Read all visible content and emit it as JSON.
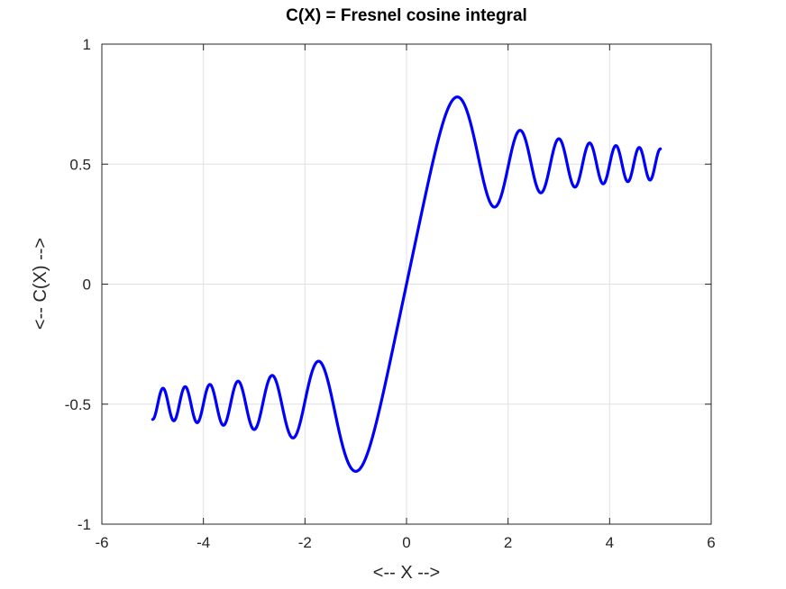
{
  "chart_data": {
    "type": "line",
    "title": "C(X) = Fresnel cosine integral",
    "xlabel": "<-- X -->",
    "ylabel": "<-- C(X) -->",
    "xlim": [
      -6,
      6
    ],
    "ylim": [
      -1,
      1
    ],
    "xticks": [
      -6,
      -4,
      -2,
      0,
      2,
      4,
      6
    ],
    "yticks": [
      -1,
      -0.5,
      0,
      0.5,
      1
    ],
    "xtick_labels": [
      "-6",
      "-4",
      "-2",
      "0",
      "2",
      "4",
      "6"
    ],
    "ytick_labels": [
      "-1",
      "-0.5",
      "0",
      "0.5",
      "1"
    ],
    "grid": true,
    "series": [
      {
        "color": "#0000ff",
        "function": "fresnel_cosine_integral",
        "x_range": [
          -5,
          5
        ],
        "x": [
          -5,
          -4.75,
          -4.5,
          -4.25,
          -4,
          -3.75,
          -3.5,
          -3.25,
          -3,
          -2.75,
          -2.5,
          -2.25,
          -2,
          -1.75,
          -1.5,
          -1.25,
          -1,
          -0.75,
          -0.5,
          -0.25,
          0,
          0.25,
          0.5,
          0.75,
          1,
          1.25,
          1.5,
          1.75,
          2,
          2.25,
          2.5,
          2.75,
          3,
          3.25,
          3.5,
          3.75,
          4,
          4.25,
          4.5,
          4.75,
          5
        ],
        "y": [
          -0.564,
          -0.53,
          -0.526,
          -0.465,
          -0.498,
          -0.531,
          -0.533,
          -0.41,
          -0.606,
          -0.52,
          -0.457,
          -0.63,
          -0.488,
          -0.322,
          -0.445,
          -0.72,
          -0.78,
          -0.676,
          -0.492,
          -0.25,
          0,
          0.25,
          0.492,
          0.676,
          0.78,
          0.72,
          0.445,
          0.322,
          0.488,
          0.63,
          0.457,
          0.52,
          0.606,
          0.41,
          0.533,
          0.531,
          0.498,
          0.465,
          0.526,
          0.53,
          0.564
        ]
      }
    ]
  }
}
